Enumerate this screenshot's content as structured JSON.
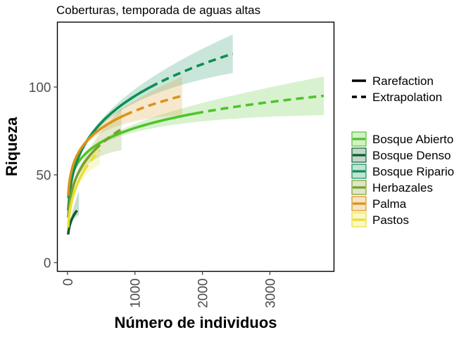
{
  "chart_data": {
    "type": "line",
    "title": "Coberturas, temporada de aguas altas",
    "xlabel": "Número de individuos",
    "ylabel": "Riqueza",
    "xlim": [
      -150,
      3950
    ],
    "ylim": [
      -5,
      137
    ],
    "x_ticks": [
      0,
      1000,
      2000,
      3000
    ],
    "x_tick_labels": [
      "0",
      "1000",
      "2000",
      "3000"
    ],
    "y_ticks": [
      0,
      50,
      100
    ],
    "y_tick_labels": [
      "0",
      "50",
      "100"
    ],
    "grid": false,
    "legend_position": "right",
    "linetype_legend": [
      {
        "label": "Rarefaction",
        "style": "solid"
      },
      {
        "label": "Extrapolation",
        "style": "dashed"
      }
    ],
    "series": [
      {
        "name": "Bosque Abierto",
        "color": "#4fc42a",
        "n_observed": 1900,
        "s_observed": 85,
        "n_max": 3800,
        "s_extrapolated": 95,
        "ci_upper_end": 106,
        "ci_lower_end": 84
      },
      {
        "name": "Bosque Denso",
        "color": "#0b5e2b",
        "n_observed": 80,
        "s_observed": 26,
        "n_max": 170,
        "s_extrapolated": 31,
        "ci_upper_end": 41,
        "ci_lower_end": 27
      },
      {
        "name": "Bosque Ripario",
        "color": "#0c8f55",
        "n_observed": 1230,
        "s_observed": 100,
        "n_max": 2450,
        "s_extrapolated": 119,
        "ci_upper_end": 130,
        "ci_lower_end": 108
      },
      {
        "name": "Herbazales",
        "color": "#7c9e2a",
        "n_observed": 400,
        "s_observed": 64,
        "n_max": 800,
        "s_extrapolated": 76,
        "ci_upper_end": 88,
        "ci_lower_end": 64
      },
      {
        "name": "Palma",
        "color": "#d9941a",
        "n_observed": 850,
        "s_observed": 84,
        "n_max": 1700,
        "s_extrapolated": 95,
        "ci_upper_end": 106,
        "ci_lower_end": 84
      },
      {
        "name": "Pastos",
        "color": "#e8e030",
        "n_observed": 240,
        "s_observed": 52,
        "n_max": 480,
        "s_extrapolated": 64,
        "ci_upper_end": 72,
        "ci_lower_end": 56
      }
    ]
  }
}
